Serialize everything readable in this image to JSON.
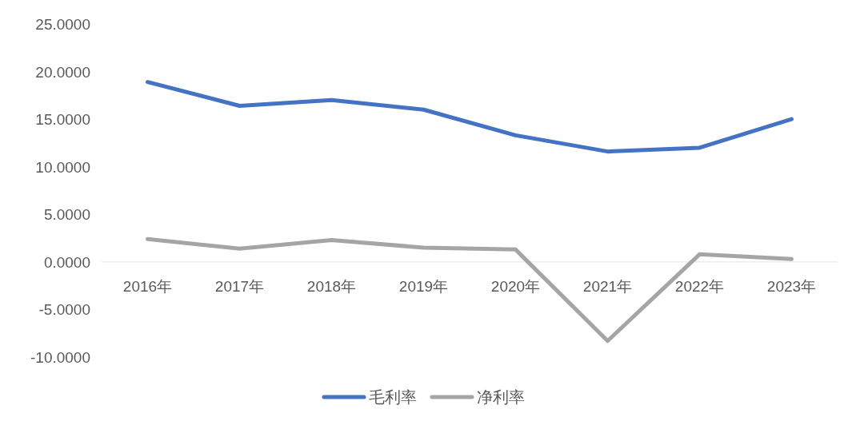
{
  "chart_data": {
    "type": "line",
    "categories": [
      "2016年",
      "2017年",
      "2018年",
      "2019年",
      "2020年",
      "2021年",
      "2022年",
      "2023年"
    ],
    "series": [
      {
        "name": "毛利率",
        "color": "#4472c4",
        "values": [
          18.9,
          16.4,
          17.0,
          16.0,
          13.3,
          11.6,
          12.0,
          15.0
        ]
      },
      {
        "name": "净利率",
        "color": "#a5a5a5",
        "values": [
          2.4,
          1.4,
          2.3,
          1.5,
          1.3,
          -8.3,
          0.8,
          0.3
        ]
      }
    ],
    "ylim": [
      -10,
      25
    ],
    "yticks": [
      {
        "value": -10,
        "label": "-10.0000"
      },
      {
        "value": -5,
        "label": "-5.0000"
      },
      {
        "value": 0,
        "label": "0.0000"
      },
      {
        "value": 5,
        "label": "5.0000"
      },
      {
        "value": 10,
        "label": "10.0000"
      },
      {
        "value": 15,
        "label": "15.0000"
      },
      {
        "value": 20,
        "label": "20.0000"
      },
      {
        "value": 25,
        "label": "25.0000"
      }
    ],
    "legend": "bottom"
  }
}
